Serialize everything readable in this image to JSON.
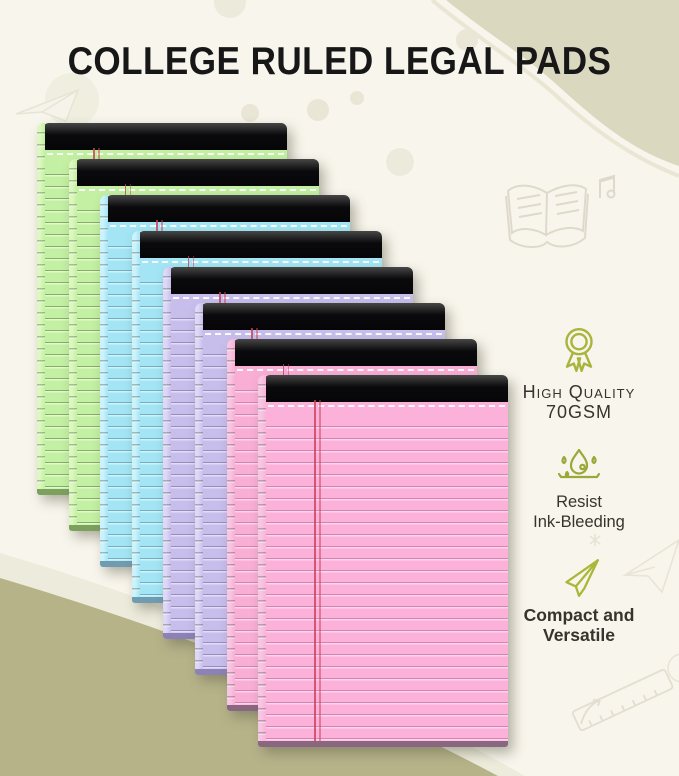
{
  "title": "COLLEGE RULED LEGAL PADS",
  "colors": {
    "background": "#f8f5ec",
    "accent_olive": "#a9b43c",
    "binding_black": "#0a0a0c",
    "wave_khaki": "#dbd8c0",
    "wave_olive": "#b6b389",
    "wave_light": "#edebdb",
    "text": "#36342c"
  },
  "pads": [
    {
      "color": "green",
      "paper": "#c3f0a2",
      "line": "#83b263",
      "side": "#dcf7c0",
      "edge": "#7ca05e"
    },
    {
      "color": "green",
      "paper": "#c3f0a2",
      "line": "#83b263",
      "side": "#dcf7c0",
      "edge": "#7ca05e"
    },
    {
      "color": "blue",
      "paper": "#a3e5f4",
      "line": "#6fb0c6",
      "side": "#ccf2fb",
      "edge": "#6f9cb1"
    },
    {
      "color": "blue",
      "paper": "#a3e5f4",
      "line": "#6fb0c6",
      "side": "#ccf2fb",
      "edge": "#6f9cb1"
    },
    {
      "color": "purple",
      "paper": "#c7beec",
      "line": "#968cc2",
      "side": "#ded7f6",
      "edge": "#8d82b5"
    },
    {
      "color": "purple",
      "paper": "#c7beec",
      "line": "#968cc2",
      "side": "#ded7f6",
      "edge": "#8d82b5"
    },
    {
      "color": "pink",
      "paper": "#f9aed6",
      "line": "#d684af",
      "side": "#f6c6e2",
      "edge": "#8a6780"
    },
    {
      "color": "pink",
      "paper": "#fbb1d9",
      "line": "#d684af",
      "side": "#f6c6e2",
      "edge": "#8a6780"
    }
  ],
  "features": [
    {
      "icon": "medal-icon",
      "line1": "High Quality",
      "line2": "70GSM"
    },
    {
      "icon": "ink-drop-icon",
      "line1": "Resist",
      "line2": "Ink-Bleeding"
    },
    {
      "icon": "paper-plane-icon",
      "line1": "Compact and",
      "line2": "Versatile"
    }
  ]
}
